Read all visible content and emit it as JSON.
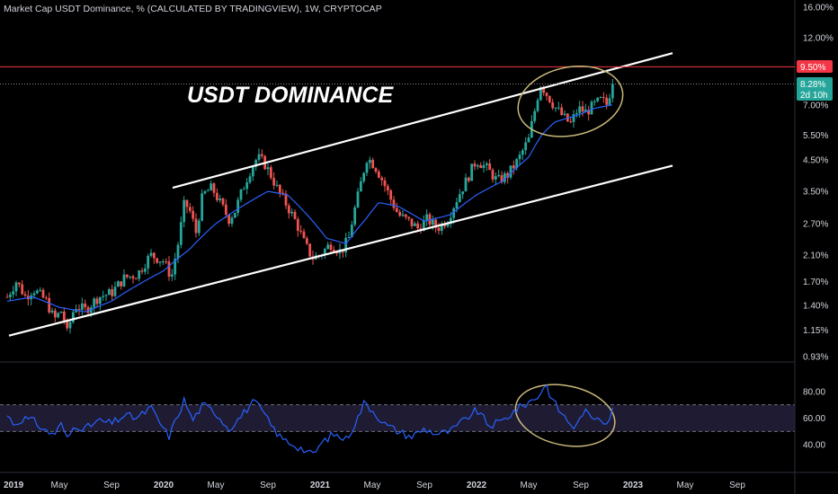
{
  "header": {
    "title": "Market Cap USDT Dominance, % (CALCULATED BY TRADINGVIEW), 1W, CRYPTOCAP"
  },
  "annotation": "USDT DOMINANCE",
  "colors": {
    "up": "#26a69a",
    "down": "#ef5350",
    "ma": "#2962ff",
    "rsi": "#2962ff",
    "channel": "#ffffff",
    "resistance": "#f23645",
    "ellipse": "#c9b97a",
    "rsi_band": "#1e1b33"
  },
  "price_tags": {
    "resistance": "9.50%",
    "current": "8.28%",
    "countdown": "2d 10h"
  },
  "chart_data": [
    {
      "type": "candlestick",
      "scale": "log",
      "ylim": [
        0.93,
        16.0
      ],
      "yticks": [
        "16.00%",
        "12.00%",
        "9.50%",
        "7.00%",
        "5.50%",
        "4.50%",
        "3.50%",
        "2.70%",
        "2.10%",
        "1.70%",
        "1.40%",
        "1.15%",
        "0.93%"
      ],
      "ytick_values": [
        16.0,
        12.0,
        9.5,
        7.0,
        5.5,
        4.5,
        3.5,
        2.7,
        2.1,
        1.7,
        1.4,
        1.15,
        0.93
      ],
      "xticks": [
        "2019",
        "May",
        "Sep",
        "2020",
        "May",
        "Sep",
        "2021",
        "May",
        "Sep",
        "2022",
        "May",
        "Sep",
        "2023",
        "May",
        "Sep"
      ],
      "xtick_months": [
        0,
        4,
        8,
        12,
        16,
        20,
        24,
        28,
        32,
        36,
        40,
        44,
        48,
        52,
        56
      ],
      "close_anchors": [
        [
          0,
          1.5
        ],
        [
          0.7,
          1.7
        ],
        [
          1.4,
          1.5
        ],
        [
          2,
          1.6
        ],
        [
          3,
          1.45
        ],
        [
          3.6,
          1.25
        ],
        [
          4.2,
          1.35
        ],
        [
          4.6,
          1.12
        ],
        [
          5.2,
          1.4
        ],
        [
          6,
          1.35
        ],
        [
          7,
          1.5
        ],
        [
          8,
          1.55
        ],
        [
          9,
          1.75
        ],
        [
          10,
          1.8
        ],
        [
          11,
          2.1
        ],
        [
          12,
          2.0
        ],
        [
          12.6,
          1.75
        ],
        [
          13.2,
          2.4
        ],
        [
          13.6,
          3.2
        ],
        [
          14,
          3.0
        ],
        [
          14.5,
          2.5
        ],
        [
          15,
          3.4
        ],
        [
          15.7,
          3.6
        ],
        [
          16.3,
          3.2
        ],
        [
          17,
          2.8
        ],
        [
          17.5,
          3.0
        ],
        [
          18,
          3.5
        ],
        [
          18.7,
          4.2
        ],
        [
          19.2,
          4.6
        ],
        [
          19.7,
          4.4
        ],
        [
          20.2,
          4.0
        ],
        [
          20.8,
          3.5
        ],
        [
          21.5,
          3.1
        ],
        [
          22.2,
          2.7
        ],
        [
          22.8,
          2.3
        ],
        [
          23.4,
          2.05
        ],
        [
          24,
          2.1
        ],
        [
          24.8,
          2.3
        ],
        [
          25.6,
          2.15
        ],
        [
          26.2,
          2.4
        ],
        [
          27,
          3.5
        ],
        [
          27.6,
          4.6
        ],
        [
          28.2,
          4.3
        ],
        [
          28.8,
          3.8
        ],
        [
          29.4,
          3.3
        ],
        [
          30,
          2.9
        ],
        [
          30.8,
          2.75
        ],
        [
          31.5,
          2.6
        ],
        [
          32.2,
          2.8
        ],
        [
          33,
          2.6
        ],
        [
          33.8,
          2.8
        ],
        [
          34.5,
          3.3
        ],
        [
          35.2,
          3.8
        ],
        [
          36,
          4.5
        ],
        [
          36.8,
          4.2
        ],
        [
          37.6,
          3.8
        ],
        [
          38.4,
          4.0
        ],
        [
          39.2,
          4.5
        ],
        [
          40,
          5.3
        ],
        [
          40.5,
          6.8
        ],
        [
          40.9,
          8.3
        ],
        [
          41.4,
          7.6
        ],
        [
          42,
          6.9
        ],
        [
          42.6,
          6.4
        ],
        [
          43.2,
          6.0
        ],
        [
          43.8,
          6.8
        ],
        [
          44.4,
          6.6
        ],
        [
          45,
          7.0
        ],
        [
          45.6,
          7.3
        ],
        [
          46,
          7.0
        ],
        [
          46.4,
          8.28
        ]
      ],
      "moving_average_anchors": [
        [
          0,
          1.45
        ],
        [
          2,
          1.5
        ],
        [
          4,
          1.38
        ],
        [
          6,
          1.33
        ],
        [
          8,
          1.45
        ],
        [
          10,
          1.65
        ],
        [
          12,
          1.85
        ],
        [
          14,
          2.2
        ],
        [
          16,
          2.7
        ],
        [
          18,
          3.1
        ],
        [
          20,
          3.5
        ],
        [
          21.5,
          3.4
        ],
        [
          23,
          2.9
        ],
        [
          24.5,
          2.4
        ],
        [
          26,
          2.3
        ],
        [
          27.5,
          2.8
        ],
        [
          28.5,
          3.2
        ],
        [
          30,
          3.1
        ],
        [
          32,
          2.75
        ],
        [
          34,
          2.9
        ],
        [
          36,
          3.4
        ],
        [
          38,
          3.8
        ],
        [
          40,
          4.6
        ],
        [
          41,
          5.5
        ],
        [
          42,
          6.1
        ],
        [
          43,
          6.3
        ],
        [
          44,
          6.5
        ],
        [
          45,
          6.8
        ],
        [
          46.4,
          7.0
        ]
      ],
      "channel": {
        "upper": [
          [
            "2020-01",
            3.6
          ],
          [
            "2023-01",
            10.6
          ]
        ],
        "lower": [
          [
            "2019-01",
            1.1
          ],
          [
            "2023-01",
            4.3
          ]
        ]
      },
      "resistance_level": 9.5,
      "last_close": 8.28
    },
    {
      "type": "line",
      "name": "RSI",
      "ylim": [
        30,
        90
      ],
      "yticks": [
        "80.00",
        "60.00",
        "40.00"
      ],
      "ytick_values": [
        80,
        60,
        40
      ],
      "band": [
        50,
        70
      ],
      "anchors": [
        [
          0,
          62
        ],
        [
          0.6,
          55
        ],
        [
          1.2,
          60
        ],
        [
          2,
          58
        ],
        [
          3,
          50
        ],
        [
          3.6,
          48
        ],
        [
          4.2,
          56
        ],
        [
          4.6,
          44
        ],
        [
          5.2,
          55
        ],
        [
          6,
          52
        ],
        [
          7,
          58
        ],
        [
          8,
          56
        ],
        [
          9,
          62
        ],
        [
          10,
          60
        ],
        [
          11,
          68
        ],
        [
          11.8,
          55
        ],
        [
          12.4,
          46
        ],
        [
          13,
          60
        ],
        [
          13.6,
          74
        ],
        [
          14.2,
          58
        ],
        [
          15,
          70
        ],
        [
          16,
          64
        ],
        [
          17,
          52
        ],
        [
          18,
          62
        ],
        [
          18.8,
          72
        ],
        [
          19.4,
          68
        ],
        [
          20.2,
          55
        ],
        [
          21,
          45
        ],
        [
          22,
          40
        ],
        [
          22.8,
          36
        ],
        [
          23.4,
          32
        ],
        [
          24.2,
          42
        ],
        [
          25,
          48
        ],
        [
          26,
          44
        ],
        [
          26.8,
          58
        ],
        [
          27.4,
          72
        ],
        [
          28.2,
          64
        ],
        [
          29,
          55
        ],
        [
          30,
          50
        ],
        [
          31,
          46
        ],
        [
          32,
          52
        ],
        [
          33,
          48
        ],
        [
          34,
          50
        ],
        [
          35,
          58
        ],
        [
          36,
          66
        ],
        [
          37,
          54
        ],
        [
          38,
          58
        ],
        [
          39,
          66
        ],
        [
          40,
          72
        ],
        [
          40.7,
          76
        ],
        [
          41.3,
          86
        ],
        [
          41.8,
          74
        ],
        [
          42.4,
          65
        ],
        [
          43,
          58
        ],
        [
          43.6,
          52
        ],
        [
          44.2,
          66
        ],
        [
          44.8,
          60
        ],
        [
          45.4,
          62
        ],
        [
          46,
          56
        ],
        [
          46.4,
          66
        ]
      ]
    }
  ]
}
